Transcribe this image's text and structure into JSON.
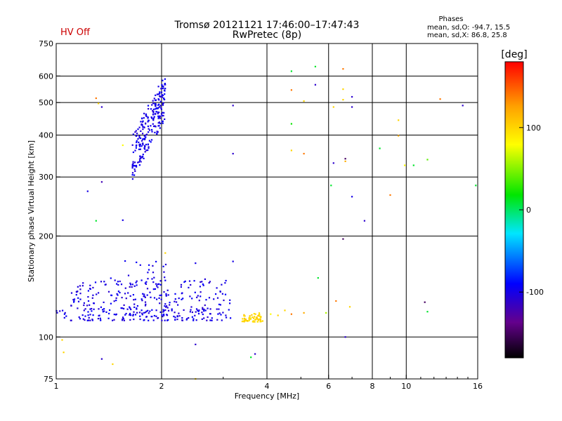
{
  "header": {
    "status": "HV Off",
    "status_color": "#cc0000",
    "title_line1": "Tromsø 20121121 17:46:00–17:47:43",
    "title_line2": "RwPretec (8p)"
  },
  "stats": {
    "heading": "Phases",
    "line1": "mean, sd,O: -94.7, 15.5",
    "line2": "mean, sd,X:  86.8, 25.8"
  },
  "colorbar": {
    "label": "[deg]",
    "min": -180,
    "max": 180,
    "ticks": [
      {
        "value": 100,
        "label": "100"
      },
      {
        "value": 0,
        "label": "0"
      },
      {
        "value": -100,
        "label": "-100"
      }
    ]
  },
  "chart_data": {
    "type": "scatter",
    "title": "Tromsø 20121121 17:46:00–17:47:43",
    "subtitle": "RwPretec (8p)",
    "xlabel": "Frequency [MHz]",
    "ylabel": "Stationary phase Virtual Height [km]",
    "xscale": "log",
    "yscale": "log",
    "xlim": [
      1,
      16
    ],
    "ylim": [
      75,
      750
    ],
    "xticks": [
      1,
      2,
      4,
      6,
      8,
      10,
      16
    ],
    "xtick_labels": [
      "1",
      "2",
      "4",
      "6",
      "8",
      "10",
      "16"
    ],
    "yticks": [
      75,
      100,
      200,
      300,
      400,
      500,
      600,
      750
    ],
    "ytick_labels": [
      "75",
      "100",
      "200",
      "300",
      "400",
      "500",
      "600",
      "750"
    ],
    "x_gridlines": [
      2,
      4,
      6,
      8,
      10
    ],
    "y_gridlines": [
      100,
      200,
      300,
      400,
      500,
      600
    ],
    "grid": true,
    "point_color": "phase [deg]",
    "point_clusters": [
      {
        "x_range": [
          1.65,
          2.05
        ],
        "y_range": [
          310,
          620
        ],
        "n": 240,
        "phase": -100
      },
      {
        "x_range": [
          1.1,
          3.15
        ],
        "y_range": [
          112,
          150
        ],
        "n": 320,
        "phase": -100
      },
      {
        "x_range": [
          1.55,
          2.1
        ],
        "y_range": [
          115,
          170
        ],
        "n": 60,
        "phase": -100
      },
      {
        "x_range": [
          3.4,
          3.9
        ],
        "y_range": [
          111,
          118
        ],
        "n": 60,
        "phase": 100
      },
      {
        "x_range": [
          1.0,
          1.08
        ],
        "y_range": [
          112,
          120
        ],
        "n": 8,
        "phase": -100
      }
    ],
    "points": [
      {
        "x": 1.3,
        "y": 515,
        "phase": 140
      },
      {
        "x": 1.32,
        "y": 497,
        "phase": 100
      },
      {
        "x": 1.35,
        "y": 485,
        "phase": -110
      },
      {
        "x": 1.35,
        "y": 290,
        "phase": -120
      },
      {
        "x": 1.23,
        "y": 272,
        "phase": -100
      },
      {
        "x": 1.3,
        "y": 222,
        "phase": 10
      },
      {
        "x": 1.55,
        "y": 223,
        "phase": -100
      },
      {
        "x": 1.55,
        "y": 373,
        "phase": 80
      },
      {
        "x": 3.2,
        "y": 490,
        "phase": -110
      },
      {
        "x": 3.2,
        "y": 352,
        "phase": -110
      },
      {
        "x": 3.2,
        "y": 168,
        "phase": -100
      },
      {
        "x": 2.5,
        "y": 166,
        "phase": -100
      },
      {
        "x": 2.05,
        "y": 178,
        "phase": 100
      },
      {
        "x": 2.5,
        "y": 95,
        "phase": -110
      },
      {
        "x": 2.5,
        "y": 75,
        "phase": 100
      },
      {
        "x": 1.35,
        "y": 86,
        "phase": -110
      },
      {
        "x": 1.45,
        "y": 83,
        "phase": 100
      },
      {
        "x": 1.05,
        "y": 90,
        "phase": 100
      },
      {
        "x": 1.04,
        "y": 98,
        "phase": 100
      },
      {
        "x": 3.6,
        "y": 87,
        "phase": 10
      },
      {
        "x": 3.7,
        "y": 89,
        "phase": -110
      },
      {
        "x": 4.7,
        "y": 620,
        "phase": 10
      },
      {
        "x": 4.7,
        "y": 545,
        "phase": 140
      },
      {
        "x": 4.7,
        "y": 432,
        "phase": 20
      },
      {
        "x": 4.7,
        "y": 360,
        "phase": 100
      },
      {
        "x": 5.1,
        "y": 505,
        "phase": 100
      },
      {
        "x": 5.1,
        "y": 352,
        "phase": 140
      },
      {
        "x": 5.5,
        "y": 640,
        "phase": 10
      },
      {
        "x": 5.5,
        "y": 565,
        "phase": -110
      },
      {
        "x": 6.6,
        "y": 630,
        "phase": 140
      },
      {
        "x": 6.6,
        "y": 548,
        "phase": 100
      },
      {
        "x": 6.6,
        "y": 510,
        "phase": 100
      },
      {
        "x": 6.2,
        "y": 485,
        "phase": 100
      },
      {
        "x": 7.0,
        "y": 520,
        "phase": -110
      },
      {
        "x": 7.0,
        "y": 485,
        "phase": -110
      },
      {
        "x": 6.7,
        "y": 340,
        "phase": -150
      },
      {
        "x": 6.7,
        "y": 334,
        "phase": 120
      },
      {
        "x": 6.2,
        "y": 330,
        "phase": -110
      },
      {
        "x": 6.1,
        "y": 283,
        "phase": 10
      },
      {
        "x": 7.0,
        "y": 262,
        "phase": -100
      },
      {
        "x": 7.6,
        "y": 222,
        "phase": -110
      },
      {
        "x": 8.4,
        "y": 365,
        "phase": 10
      },
      {
        "x": 9.0,
        "y": 265,
        "phase": 140
      },
      {
        "x": 9.5,
        "y": 443,
        "phase": 100
      },
      {
        "x": 9.5,
        "y": 398,
        "phase": 120
      },
      {
        "x": 9.9,
        "y": 325,
        "phase": 80
      },
      {
        "x": 10.5,
        "y": 325,
        "phase": 10
      },
      {
        "x": 11.5,
        "y": 338,
        "phase": 40
      },
      {
        "x": 12.5,
        "y": 512,
        "phase": 140
      },
      {
        "x": 14.5,
        "y": 490,
        "phase": -110
      },
      {
        "x": 15.8,
        "y": 283,
        "phase": 10
      },
      {
        "x": 6.6,
        "y": 196,
        "phase": -150
      },
      {
        "x": 5.6,
        "y": 150,
        "phase": 10
      },
      {
        "x": 6.3,
        "y": 128,
        "phase": 140
      },
      {
        "x": 6.9,
        "y": 123,
        "phase": 100
      },
      {
        "x": 6.7,
        "y": 100,
        "phase": -110
      },
      {
        "x": 5.9,
        "y": 118,
        "phase": 60
      },
      {
        "x": 4.5,
        "y": 120,
        "phase": 100
      },
      {
        "x": 4.7,
        "y": 117,
        "phase": 140
      },
      {
        "x": 5.1,
        "y": 118,
        "phase": 120
      },
      {
        "x": 4.3,
        "y": 116,
        "phase": 100
      },
      {
        "x": 4.1,
        "y": 117,
        "phase": 80
      },
      {
        "x": 11.3,
        "y": 127,
        "phase": -150
      },
      {
        "x": 11.5,
        "y": 119,
        "phase": 10
      }
    ]
  }
}
